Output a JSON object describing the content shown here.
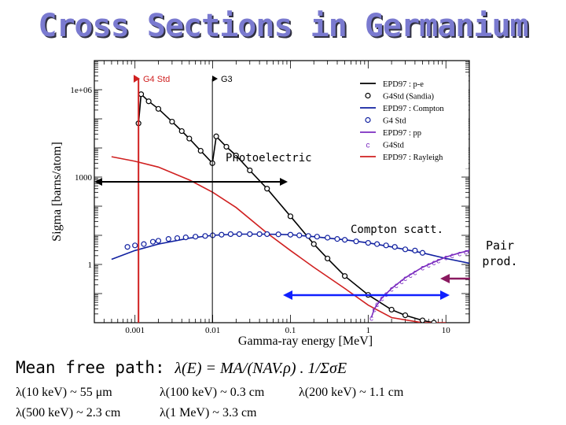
{
  "title": "Cross Sections in Germanium",
  "chart_data": {
    "type": "line",
    "xlabel": "Gamma-ray energy [MeV]",
    "ylabel": "Sigma [barns/atom]",
    "xscale": "log",
    "yscale": "log",
    "xlim": [
      0.0003,
      20
    ],
    "ylim": [
      0.01,
      10000000
    ],
    "xticks": [
      {
        "v": 0.001,
        "label": "0.001"
      },
      {
        "v": 0.01,
        "label": "0.01"
      },
      {
        "v": 0.1,
        "label": "0.1"
      },
      {
        "v": 1,
        "label": "1"
      },
      {
        "v": 10,
        "label": "10"
      }
    ],
    "yticks": [
      {
        "v": 1000000,
        "label": "1e+06"
      },
      {
        "v": 1000,
        "label": "1000"
      },
      {
        "v": 1,
        "label": "1"
      }
    ],
    "legend_position": "top-right",
    "series": [
      {
        "name": "EPD97 : p-e",
        "style": "line",
        "color": "#000000",
        "x": [
          0.00111,
          0.0012,
          0.0015,
          0.002,
          0.003,
          0.004,
          0.005,
          0.007,
          0.0099,
          0.0111,
          0.015,
          0.02,
          0.03,
          0.05,
          0.1,
          0.2,
          0.3,
          0.5,
          1,
          2,
          3,
          5,
          7
        ],
        "y": [
          70000,
          700000,
          400000,
          220000,
          80000,
          38000,
          21000,
          8000,
          3000,
          25000,
          11000,
          5500,
          1700,
          400,
          45,
          5,
          1.6,
          0.4,
          0.09,
          0.028,
          0.018,
          0.012,
          0.01
        ]
      },
      {
        "name": "G4Std (Sandia)",
        "style": "markers",
        "marker": "circle",
        "color": "#000000",
        "x": [
          0.00111,
          0.0012,
          0.0015,
          0.002,
          0.003,
          0.004,
          0.005,
          0.007,
          0.0099,
          0.0111,
          0.015,
          0.02,
          0.03,
          0.05,
          0.1,
          0.2,
          0.3,
          0.5,
          1,
          2,
          3,
          5,
          7
        ],
        "y": [
          70000,
          700000,
          400000,
          220000,
          80000,
          38000,
          21000,
          8000,
          3000,
          25000,
          11000,
          5500,
          1700,
          400,
          45,
          5,
          1.6,
          0.4,
          0.09,
          0.028,
          0.018,
          0.012,
          0.01
        ]
      },
      {
        "name": "EPD97 : Compton",
        "style": "line",
        "color": "#1020a0",
        "x": [
          0.0005,
          0.001,
          0.002,
          0.005,
          0.01,
          0.02,
          0.05,
          0.1,
          0.2,
          0.5,
          1,
          2,
          5,
          10,
          20
        ],
        "y": [
          1.5,
          3,
          5,
          8,
          10,
          11,
          11,
          10.5,
          9,
          7,
          5.5,
          4,
          2.5,
          1.6,
          1.1
        ]
      },
      {
        "name": "G4 Std",
        "style": "markers",
        "marker": "circle",
        "color": "#1020a0",
        "x": [
          0.0008,
          0.001,
          0.0013,
          0.0017,
          0.002,
          0.0027,
          0.0035,
          0.0045,
          0.006,
          0.008,
          0.01,
          0.013,
          0.017,
          0.022,
          0.03,
          0.04,
          0.05,
          0.07,
          0.1,
          0.13,
          0.17,
          0.22,
          0.3,
          0.4,
          0.5,
          0.7,
          1,
          1.3,
          1.7,
          2.2,
          3,
          4,
          5
        ],
        "y": [
          4,
          4.5,
          5,
          6,
          6.5,
          7.5,
          8,
          8.5,
          9,
          9.5,
          10,
          10.5,
          11,
          11,
          11,
          11,
          11,
          10.8,
          10.5,
          10,
          9.5,
          9,
          8.3,
          7.5,
          7,
          6.2,
          5.5,
          5,
          4.5,
          4,
          3.3,
          3,
          2.5
        ]
      },
      {
        "name": "EPD97 : pp",
        "style": "line",
        "color": "#7b2cc0",
        "x": [
          1.1,
          1.2,
          1.5,
          2,
          3,
          5,
          7,
          10,
          15,
          20
        ],
        "y": [
          0.015,
          0.03,
          0.07,
          0.15,
          0.35,
          0.8,
          1.2,
          1.8,
          2.5,
          3
        ]
      },
      {
        "name": "G4Std",
        "style": "markers",
        "marker": "letter-c",
        "color": "#7b2cc0",
        "x": [
          1.1,
          1.2,
          1.3,
          1.5,
          1.7,
          2,
          2.3,
          2.7,
          3,
          3.5,
          4,
          5,
          6,
          7,
          8,
          10,
          12,
          15,
          18,
          20
        ],
        "y": [
          0.015,
          0.03,
          0.045,
          0.07,
          0.1,
          0.15,
          0.2,
          0.27,
          0.35,
          0.45,
          0.55,
          0.8,
          1,
          1.2,
          1.4,
          1.8,
          2.1,
          2.5,
          2.8,
          3
        ]
      },
      {
        "name": "EPD97 : Rayleigh",
        "style": "line",
        "color": "#d02020",
        "x": [
          0.0005,
          0.001,
          0.002,
          0.005,
          0.01,
          0.02,
          0.05,
          0.1,
          0.2,
          0.5,
          1,
          2,
          5,
          10
        ],
        "y": [
          5000,
          3500,
          2200,
          800,
          300,
          90,
          12,
          3,
          0.8,
          0.15,
          0.04,
          0.015,
          0.01,
          0.01
        ]
      }
    ],
    "annotations": [
      {
        "text": "G4 Std",
        "color": "#d02020",
        "x": 0.00111
      },
      {
        "text": "G3",
        "color": "#000000",
        "x": 0.0099
      },
      {
        "text": "Photoelectric",
        "color": "#000000"
      },
      {
        "text": "Compton scatt.",
        "color": "#000000"
      }
    ]
  },
  "pair_label": [
    "Pair",
    "prod."
  ],
  "mean_free_path": {
    "label": "Mean free path:",
    "formula": "λ(E) = MA/(NAV.ρ) . 1/ΣσE",
    "values": [
      "λ(10 keV) ~ 55 μm",
      "λ(100 keV) ~ 0.3 cm",
      "λ(200 keV) ~ 1.1 cm",
      "λ(500 keV) ~ 2.3 cm",
      "λ(1 MeV) ~ 3.3 cm"
    ]
  }
}
